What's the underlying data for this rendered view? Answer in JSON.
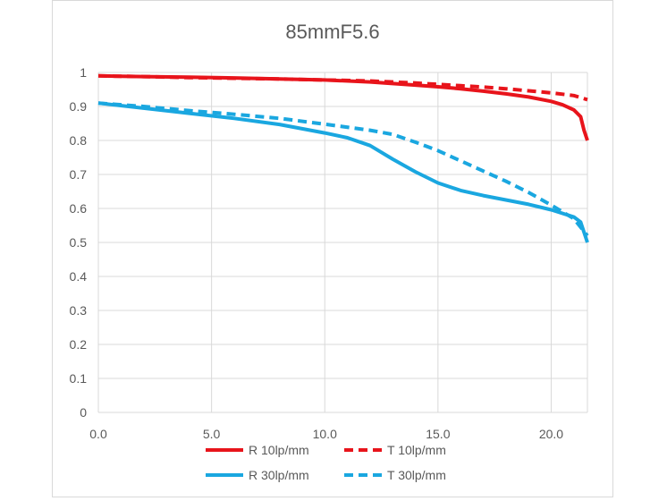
{
  "chart_data": {
    "type": "line",
    "title": "85mmF5.6",
    "xlabel": "",
    "ylabel": "",
    "xlim": [
      0,
      21.6
    ],
    "ylim": [
      0,
      1
    ],
    "grid": true,
    "legend_position": "bottom",
    "x_ticks": [
      "0.0",
      "5.0",
      "10.0",
      "15.0",
      "20.0"
    ],
    "y_ticks": [
      "0",
      "0.1",
      "0.2",
      "0.3",
      "0.4",
      "0.5",
      "0.6",
      "0.7",
      "0.8",
      "0.9",
      "1"
    ],
    "x_tick_values": [
      0,
      5,
      10,
      15,
      20
    ],
    "y_tick_values": [
      0,
      0.1,
      0.2,
      0.3,
      0.4,
      0.5,
      0.6,
      0.7,
      0.8,
      0.9,
      1
    ],
    "series": [
      {
        "name": "R 10lp/mm",
        "color": "#e8141b",
        "dash": "solid",
        "points": [
          [
            0,
            0.99
          ],
          [
            2,
            0.988
          ],
          [
            4,
            0.986
          ],
          [
            6,
            0.984
          ],
          [
            8,
            0.981
          ],
          [
            10,
            0.978
          ],
          [
            12,
            0.972
          ],
          [
            14,
            0.963
          ],
          [
            15,
            0.958
          ],
          [
            16,
            0.952
          ],
          [
            17,
            0.945
          ],
          [
            18,
            0.937
          ],
          [
            19,
            0.928
          ],
          [
            20,
            0.915
          ],
          [
            20.5,
            0.905
          ],
          [
            21,
            0.89
          ],
          [
            21.3,
            0.87
          ],
          [
            21.45,
            0.83
          ],
          [
            21.6,
            0.8
          ]
        ]
      },
      {
        "name": "T 10lp/mm",
        "color": "#e8141b",
        "dash": "dashed",
        "points": [
          [
            0,
            0.99
          ],
          [
            2,
            0.988
          ],
          [
            4,
            0.985
          ],
          [
            6,
            0.983
          ],
          [
            8,
            0.981
          ],
          [
            10,
            0.978
          ],
          [
            12,
            0.975
          ],
          [
            14,
            0.969
          ],
          [
            15,
            0.965
          ],
          [
            16,
            0.961
          ],
          [
            17,
            0.957
          ],
          [
            18,
            0.952
          ],
          [
            19,
            0.946
          ],
          [
            20,
            0.94
          ],
          [
            21,
            0.932
          ],
          [
            21.6,
            0.92
          ]
        ]
      },
      {
        "name": "R 30lp/mm",
        "color": "#1aa7e0",
        "dash": "solid",
        "points": [
          [
            0,
            0.91
          ],
          [
            2,
            0.895
          ],
          [
            4,
            0.88
          ],
          [
            6,
            0.865
          ],
          [
            8,
            0.847
          ],
          [
            10,
            0.822
          ],
          [
            11,
            0.808
          ],
          [
            12,
            0.785
          ],
          [
            13,
            0.745
          ],
          [
            14,
            0.708
          ],
          [
            15,
            0.675
          ],
          [
            16,
            0.653
          ],
          [
            17,
            0.638
          ],
          [
            18,
            0.625
          ],
          [
            19,
            0.612
          ],
          [
            20,
            0.596
          ],
          [
            21,
            0.575
          ],
          [
            21.3,
            0.56
          ],
          [
            21.6,
            0.5
          ]
        ]
      },
      {
        "name": "T 30lp/mm",
        "color": "#1aa7e0",
        "dash": "dashed",
        "points": [
          [
            0,
            0.91
          ],
          [
            2,
            0.9
          ],
          [
            4,
            0.888
          ],
          [
            6,
            0.877
          ],
          [
            8,
            0.865
          ],
          [
            10,
            0.848
          ],
          [
            12,
            0.83
          ],
          [
            13,
            0.818
          ],
          [
            14,
            0.795
          ],
          [
            15,
            0.77
          ],
          [
            16,
            0.74
          ],
          [
            17,
            0.71
          ],
          [
            18,
            0.68
          ],
          [
            19,
            0.647
          ],
          [
            20,
            0.61
          ],
          [
            21,
            0.57
          ],
          [
            21.6,
            0.52
          ]
        ]
      }
    ]
  }
}
